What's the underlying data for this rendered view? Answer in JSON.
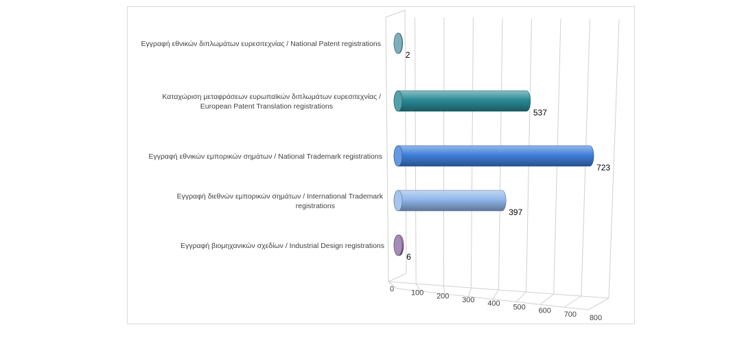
{
  "chart_data": {
    "type": "bar",
    "orientation": "horizontal",
    "style": "3d-cylinder",
    "categories": [
      "Εγγραφή  εθνικών διπλωμάτων ευρεσιτεχνίας / National Patent registrations",
      "Καταχώριση μεταφράσεων ευρωπαϊκών διπλωμάτων ευρεσιτεχνίας / European Patent Translation registrations",
      "Εγγραφή  εθνικών εμπορικών σημάτων / National Trademark registrations",
      "Εγγραφή  διεθνών εμπορικών σηµάτων / International Trademark registrations",
      "Εγγραφή  βιομηχανικών σχεδίων / Industrial Design registrations"
    ],
    "category_lines": [
      [
        "Εγγραφή  εθνικών διπλωμάτων ευρεσιτεχνίας / National Patent registrations"
      ],
      [
        "Καταχώριση μεταφράσεων ευρωπαϊκών διπλωμάτων ευρεσιτεχνίας /",
        "European Patent Translation registrations"
      ],
      [
        "Εγγραφή  εθνικών εμπορικών σημάτων / National Trademark registrations"
      ],
      [
        "Εγγραφή  διεθνών εμπορικών σηµάτων / International Trademark",
        "registrations"
      ],
      [
        "Εγγραφή  βιομηχανικών σχεδίων / Industrial Design registrations"
      ]
    ],
    "values": [
      2,
      537,
      723,
      397,
      6
    ],
    "data_labels": [
      "2",
      "537",
      "723",
      "397",
      "6"
    ],
    "colors": [
      "#5b9bab",
      "#2a8a96",
      "#3f7fd9",
      "#8fb6ea",
      "#8e6fa6"
    ],
    "xlim": [
      0,
      800
    ],
    "x_ticks": [
      "0",
      "100",
      "200",
      "300",
      "400",
      "500",
      "600",
      "700",
      "800"
    ],
    "grid": true,
    "legend": "none",
    "title": "",
    "xlabel": "",
    "ylabel": ""
  }
}
